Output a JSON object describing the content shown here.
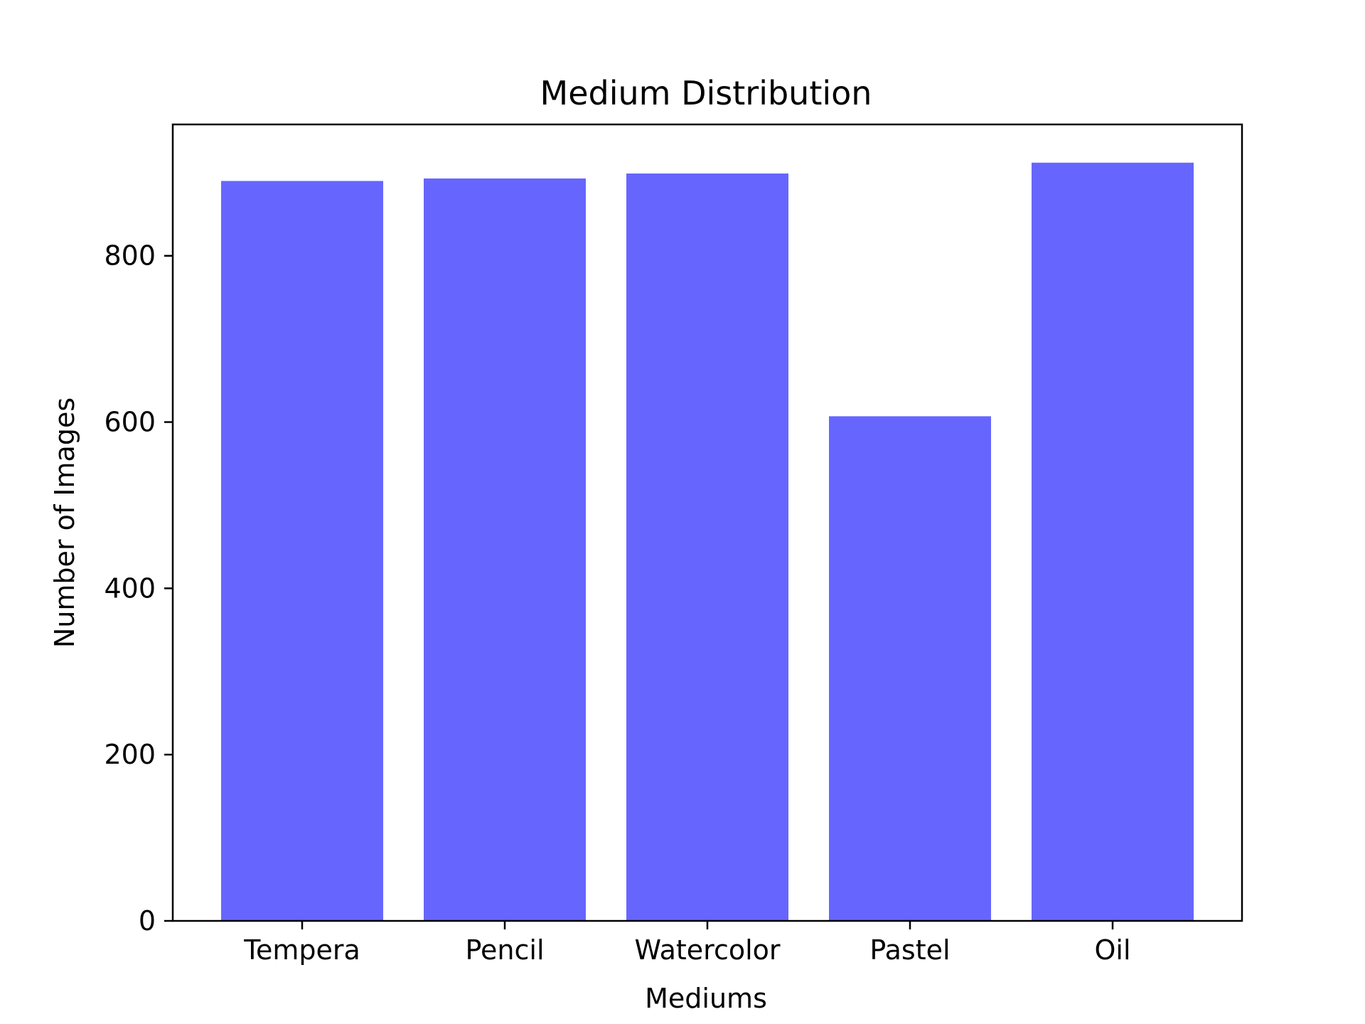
{
  "chart_data": {
    "type": "bar",
    "title": "Medium Distribution",
    "xlabel": "Mediums",
    "ylabel": "Number of Images",
    "categories": [
      "Tempera",
      "Pencil",
      "Watercolor",
      "Pastel",
      "Oil"
    ],
    "values": [
      890,
      893,
      899,
      607,
      912
    ],
    "ylim": [
      0,
      958
    ],
    "yticks": [
      0,
      200,
      400,
      600,
      800
    ],
    "bar_color": "#6666ff",
    "grid": false,
    "legend": "none"
  }
}
